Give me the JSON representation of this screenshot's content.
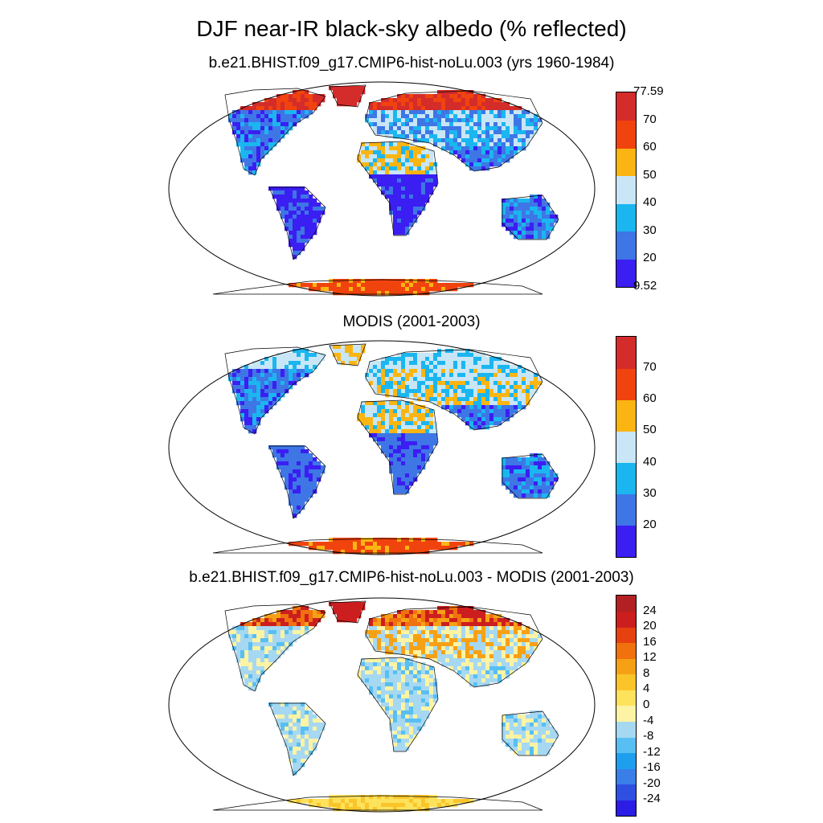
{
  "title": "DJF near-IR black-sky albedo (% reflected)",
  "panels": [
    {
      "subtitle": "b.e21.BHIST.f09_g17.CMIP6-hist-noLu.003 (yrs 1960-1984)",
      "colorbar": {
        "colors": [
          "#3b1ef2",
          "#3e76e6",
          "#1bb6f0",
          "#c8e6f6",
          "#fbb512",
          "#f1430e",
          "#d42b2b"
        ],
        "labels": [
          "9.52",
          "20",
          "30",
          "40",
          "50",
          "60",
          "70",
          "77.59"
        ]
      }
    },
    {
      "subtitle": "MODIS (2001-2003)",
      "colorbar": {
        "colors": [
          "#3b1ef2",
          "#3e76e6",
          "#1bb6f0",
          "#c8e6f6",
          "#fbb512",
          "#f1430e",
          "#d42b2b"
        ],
        "labels": [
          "",
          "20",
          "30",
          "40",
          "50",
          "60",
          "70",
          ""
        ]
      }
    },
    {
      "subtitle": "b.e21.BHIST.f09_g17.CMIP6-hist-noLu.003 - MODIS (2001-2003)",
      "colorbar": {
        "colors": [
          "#2b1de6",
          "#2f4fe3",
          "#3a7ee8",
          "#1e9fee",
          "#58bff2",
          "#a6d8f2",
          "#fdf3a4",
          "#fde25c",
          "#fbc52a",
          "#f6a115",
          "#f0710e",
          "#e6410e",
          "#cc1e1e",
          "#b32024"
        ],
        "labels": [
          "-24",
          "-20",
          "-16",
          "-12",
          "-8",
          "-4",
          "0",
          "4",
          "8",
          "12",
          "16",
          "20",
          "24"
        ]
      }
    }
  ]
}
